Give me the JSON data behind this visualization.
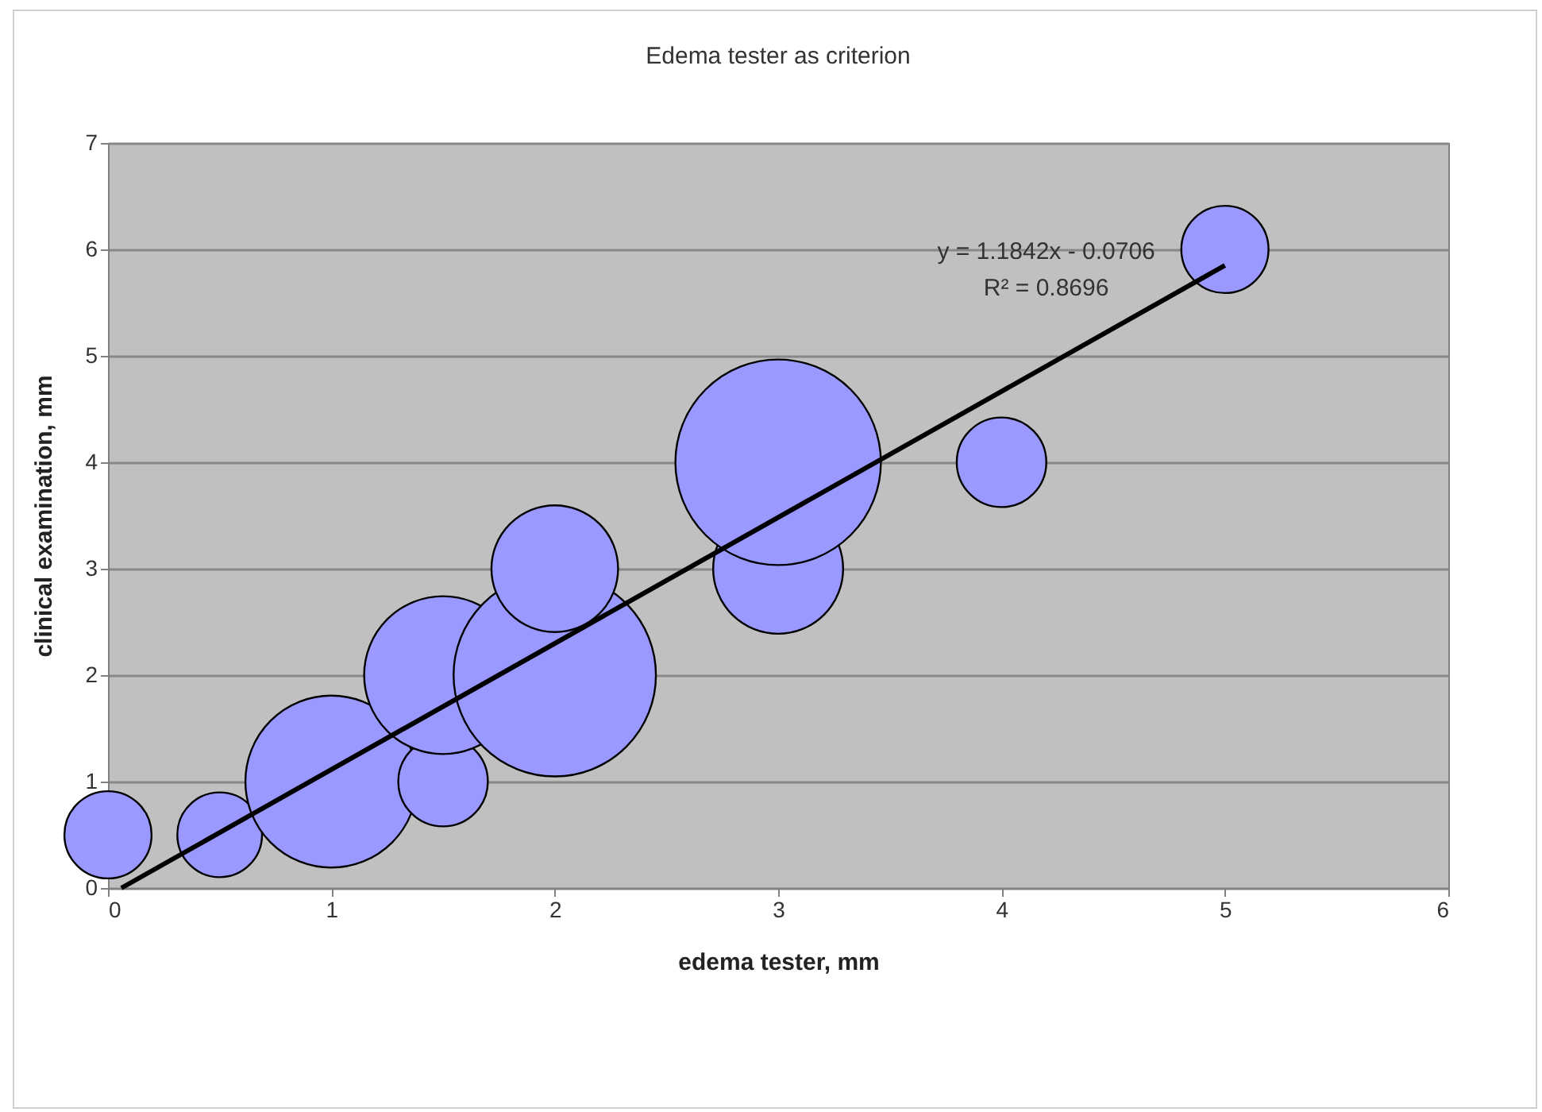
{
  "chart_data": {
    "type": "bubble",
    "title": "Edema tester as criterion",
    "xlabel": "edema tester, mm",
    "ylabel": "clinical examination, mm",
    "xlim": [
      0,
      6
    ],
    "xticks": [
      0,
      1,
      2,
      3,
      4,
      5,
      6
    ],
    "ylim": [
      0,
      7
    ],
    "yticks": [
      0,
      1,
      2,
      3,
      4,
      5,
      6,
      7
    ],
    "grid": "y",
    "annotations": [
      "y = 1.1842x - 0.0706",
      "R² = 0.8696"
    ],
    "series": [
      {
        "color": "#9999ff",
        "x": [
          0,
          0.5,
          1,
          1.5,
          1.5,
          2,
          2,
          3,
          3,
          4,
          5
        ],
        "values": [
          0.5,
          0.5,
          1,
          1,
          2,
          2,
          3,
          3,
          4,
          4,
          6
        ],
        "sizes": [
          0.18,
          0.17,
          0.7,
          0.19,
          0.59,
          0.97,
          0.38,
          0.4,
          1,
          0.19,
          0.18
        ]
      },
      {
        "type": "line",
        "color": "#000000",
        "x": [
          0.06,
          5
        ],
        "values": [
          0,
          5.85
        ]
      }
    ]
  }
}
